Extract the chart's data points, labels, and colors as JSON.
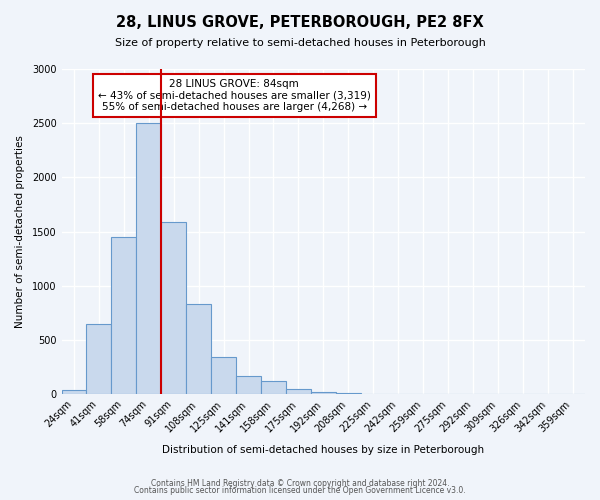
{
  "title": "28, LINUS GROVE, PETERBOROUGH, PE2 8FX",
  "subtitle": "Size of property relative to semi-detached houses in Peterborough",
  "xlabel": "Distribution of semi-detached houses by size in Peterborough",
  "ylabel": "Number of semi-detached properties",
  "bin_labels": [
    "24sqm",
    "41sqm",
    "58sqm",
    "74sqm",
    "91sqm",
    "108sqm",
    "125sqm",
    "141sqm",
    "158sqm",
    "175sqm",
    "192sqm",
    "208sqm",
    "225sqm",
    "242sqm",
    "259sqm",
    "275sqm",
    "292sqm",
    "309sqm",
    "326sqm",
    "342sqm",
    "359sqm"
  ],
  "bar_values": [
    35,
    650,
    1450,
    2500,
    1590,
    830,
    340,
    170,
    120,
    50,
    20,
    5,
    2,
    0,
    0,
    0,
    0,
    0,
    0,
    0,
    0
  ],
  "bar_color": "#c9d9ed",
  "bar_edge_color": "#6699cc",
  "vline_x": 3.5,
  "annotation_title": "28 LINUS GROVE: 84sqm",
  "annotation_line1": "← 43% of semi-detached houses are smaller (3,319)",
  "annotation_line2": "55% of semi-detached houses are larger (4,268) →",
  "annotation_box_color": "#ffffff",
  "annotation_box_edge": "#cc0000",
  "vline_color": "#cc0000",
  "ylim": [
    0,
    3000
  ],
  "footer1": "Contains HM Land Registry data © Crown copyright and database right 2024.",
  "footer2": "Contains public sector information licensed under the Open Government Licence v3.0.",
  "background_color": "#f0f4fa",
  "grid_color": "#ffffff"
}
